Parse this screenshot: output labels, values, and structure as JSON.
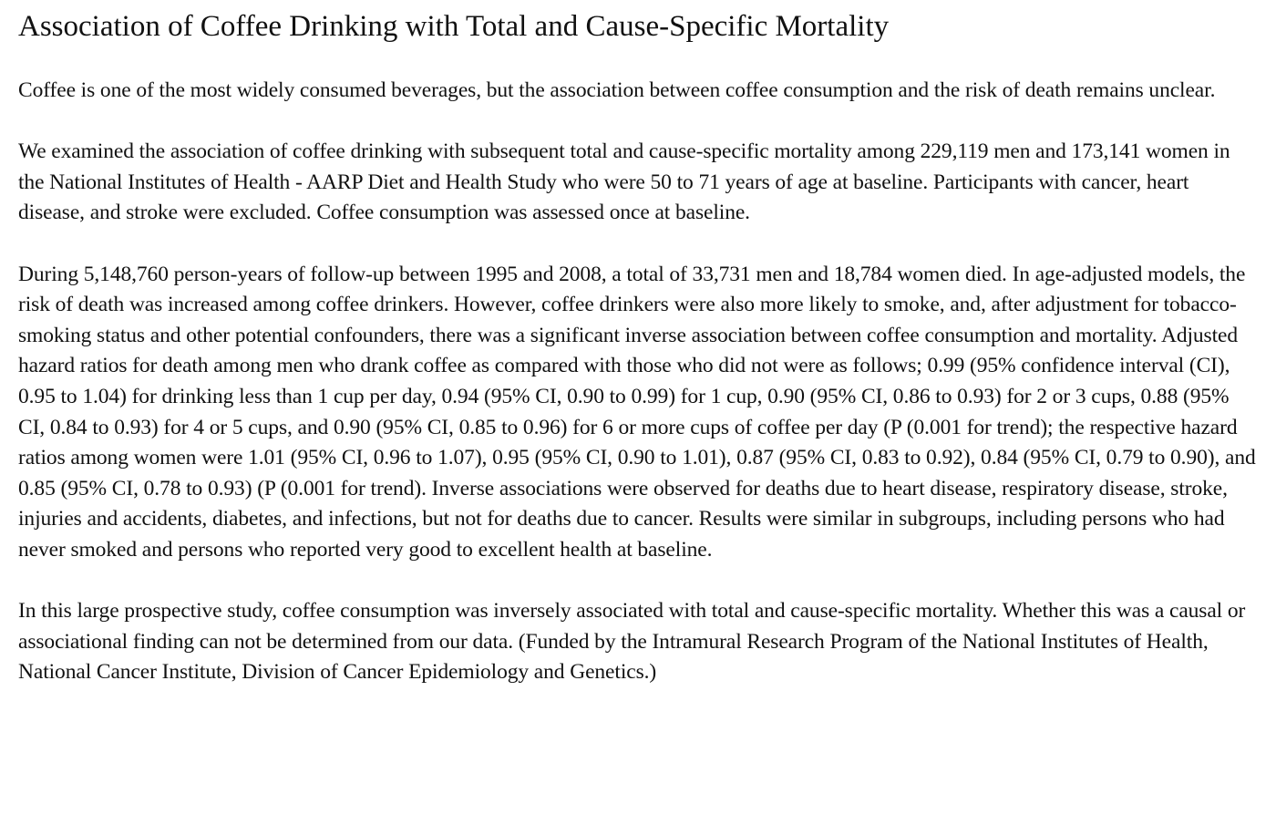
{
  "article": {
    "title": "Association of Coffee Drinking with Total and Cause-Specific Mortality",
    "paragraphs": [
      "Coffee is one of the most widely consumed beverages, but the association between coffee consumption and the risk of death remains unclear.",
      "We examined the association of coffee drinking with subsequent total and cause-specific mortality among 229,119 men and 173,141 women in the National Institutes of Health - AARP Diet and Health Study who were 50 to 71 years of age at baseline. Participants with cancer, heart disease, and stroke were excluded. Coffee consumption was assessed once at baseline.",
      "During 5,148,760 person-years of follow-up between 1995 and 2008, a total of 33,731 men and 18,784 women died. In age-adjusted models, the risk of death was increased among coffee drinkers. However, coffee drinkers were also more likely to smoke, and, after adjustment for tobacco-smoking status and other potential confounders, there was a significant inverse association between coffee consumption and mortality. Adjusted hazard ratios for death among men who drank coffee as compared with those who did not were as follows; 0.99 (95% confidence interval (CI), 0.95 to 1.04) for drinking less than 1 cup per day, 0.94 (95% CI, 0.90 to 0.99) for 1 cup, 0.90 (95% CI, 0.86 to 0.93) for 2 or 3 cups, 0.88 (95% CI, 0.84 to 0.93) for 4 or 5 cups, and 0.90 (95% CI, 0.85 to 0.96) for 6 or more cups of coffee per day (P (0.001 for trend); the respective hazard ratios among women were 1.01 (95% CI, 0.96 to 1.07), 0.95 (95% CI, 0.90 to 1.01), 0.87 (95% CI, 0.83 to 0.92), 0.84 (95% CI, 0.79 to 0.90), and 0.85 (95% CI, 0.78 to 0.93) (P (0.001 for trend). Inverse associations were observed for deaths due to heart disease, respiratory disease, stroke, injuries and accidents, diabetes, and infections, but not for deaths due to cancer. Results were similar in subgroups, including persons who had never smoked and persons who reported very good to excellent health at baseline.",
      "In this large prospective study, coffee consumption was inversely associated with total and cause-specific mortality. Whether this was a causal or associational finding can not be determined from our data. (Funded by the Intramural Research Program of the National Institutes of Health, National Cancer Institute, Division of Cancer Epidemiology and Genetics.)"
    ]
  }
}
